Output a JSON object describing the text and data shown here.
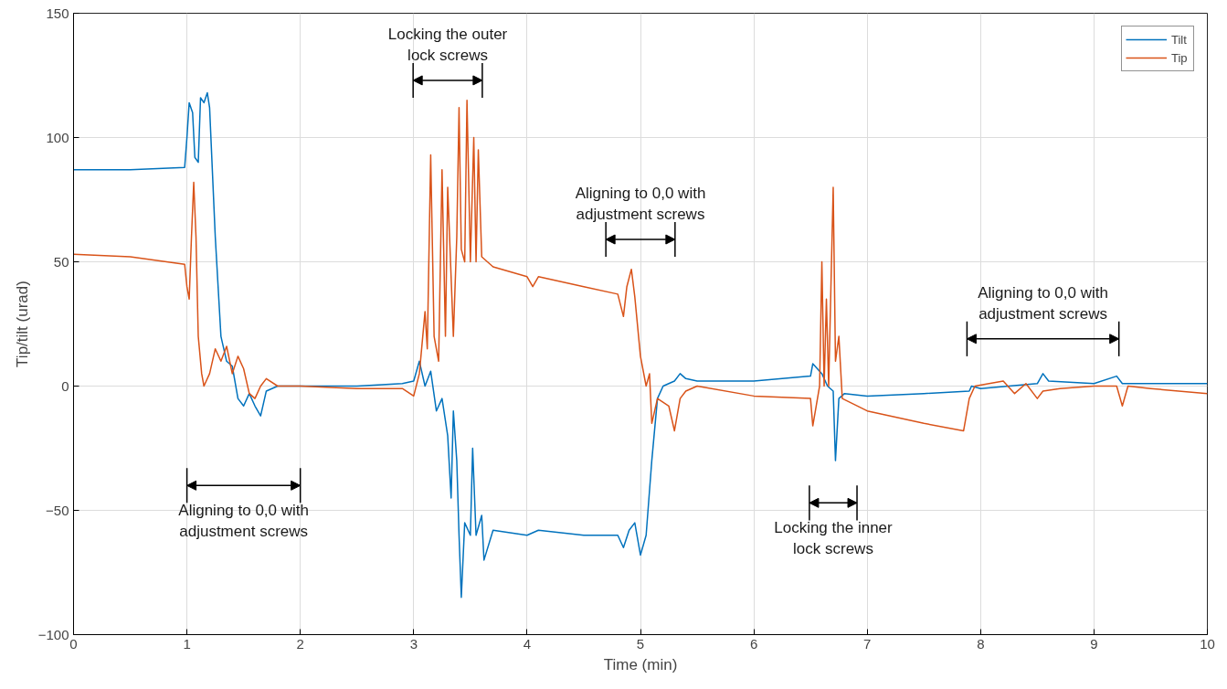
{
  "chart_data": {
    "type": "line",
    "xlabel": "Time (min)",
    "ylabel": "Tip/tilt (urad)",
    "xlim": [
      0,
      10
    ],
    "xticks": [
      0,
      1,
      2,
      3,
      4,
      5,
      6,
      7,
      8,
      9,
      10
    ],
    "ylim": [
      -100,
      150
    ],
    "yticks": [
      -100,
      -50,
      0,
      50,
      100,
      150
    ],
    "grid": true,
    "legend": "top right",
    "marker": "none",
    "line_style": "solid",
    "series": [
      {
        "name": "Tilt",
        "color": "#0072bd",
        "x": [
          0,
          0.5,
          0.98,
          1.0,
          1.02,
          1.05,
          1.07,
          1.1,
          1.12,
          1.15,
          1.18,
          1.2,
          1.25,
          1.3,
          1.35,
          1.4,
          1.45,
          1.5,
          1.55,
          1.6,
          1.65,
          1.7,
          1.8,
          2.0,
          2.5,
          2.9,
          3.0,
          3.05,
          3.1,
          3.15,
          3.2,
          3.25,
          3.3,
          3.33,
          3.35,
          3.38,
          3.4,
          3.42,
          3.45,
          3.5,
          3.52,
          3.55,
          3.6,
          3.62,
          3.7,
          4.0,
          4.1,
          4.5,
          4.8,
          4.85,
          4.9,
          4.95,
          5.0,
          5.05,
          5.1,
          5.15,
          5.2,
          5.3,
          5.35,
          5.4,
          5.5,
          6.0,
          6.5,
          6.52,
          6.6,
          6.65,
          6.7,
          6.72,
          6.75,
          6.8,
          7.0,
          7.5,
          7.9,
          7.92,
          8.0,
          8.5,
          8.55,
          8.6,
          9.0,
          9.2,
          9.25,
          9.5,
          10
        ],
        "values": [
          87,
          87,
          88,
          100,
          114,
          110,
          92,
          90,
          116,
          114,
          118,
          112,
          60,
          20,
          10,
          8,
          -5,
          -8,
          -3,
          -8,
          -12,
          -2,
          0,
          0,
          0,
          1,
          2,
          10,
          0,
          6,
          -10,
          -5,
          -20,
          -45,
          -10,
          -30,
          -60,
          -85,
          -55,
          -60,
          -25,
          -60,
          -52,
          -70,
          -58,
          -60,
          -58,
          -60,
          -60,
          -65,
          -58,
          -55,
          -68,
          -60,
          -30,
          -5,
          0,
          2,
          5,
          3,
          2,
          2,
          4,
          9,
          5,
          0,
          -2,
          -30,
          -5,
          -3,
          -4,
          -3,
          -2,
          0,
          -1,
          1,
          5,
          2,
          1,
          4,
          1,
          1,
          1
        ]
      },
      {
        "name": "Tip",
        "color": "#d95319",
        "x": [
          0,
          0.5,
          0.98,
          1.0,
          1.02,
          1.04,
          1.06,
          1.08,
          1.1,
          1.13,
          1.15,
          1.2,
          1.25,
          1.3,
          1.35,
          1.4,
          1.45,
          1.5,
          1.55,
          1.6,
          1.65,
          1.7,
          1.8,
          2.0,
          2.5,
          2.9,
          3.0,
          3.05,
          3.1,
          3.12,
          3.15,
          3.18,
          3.22,
          3.25,
          3.28,
          3.3,
          3.35,
          3.38,
          3.4,
          3.42,
          3.45,
          3.47,
          3.5,
          3.53,
          3.55,
          3.57,
          3.6,
          3.7,
          4.0,
          4.05,
          4.1,
          4.5,
          4.8,
          4.85,
          4.88,
          4.92,
          4.95,
          5.0,
          5.05,
          5.08,
          5.1,
          5.15,
          5.25,
          5.3,
          5.35,
          5.4,
          5.5,
          6.0,
          6.5,
          6.52,
          6.55,
          6.58,
          6.6,
          6.62,
          6.64,
          6.66,
          6.7,
          6.72,
          6.75,
          6.78,
          7.0,
          7.5,
          7.85,
          7.9,
          7.95,
          8.2,
          8.3,
          8.4,
          8.5,
          8.55,
          8.7,
          9.0,
          9.2,
          9.25,
          9.3,
          9.5,
          10
        ],
        "values": [
          53,
          52,
          49,
          40,
          35,
          60,
          82,
          60,
          20,
          5,
          0,
          5,
          15,
          10,
          16,
          5,
          12,
          7,
          -3,
          -5,
          0,
          3,
          0,
          0,
          -1,
          -1,
          -4,
          5,
          30,
          15,
          93,
          20,
          10,
          87,
          20,
          80,
          20,
          60,
          112,
          55,
          50,
          115,
          50,
          100,
          50,
          95,
          52,
          48,
          44,
          40,
          44,
          40,
          37,
          28,
          40,
          47,
          36,
          12,
          0,
          5,
          -15,
          -5,
          -8,
          -18,
          -5,
          -2,
          0,
          -4,
          -5,
          -16,
          -8,
          0,
          50,
          0,
          35,
          0,
          80,
          10,
          20,
          -5,
          -10,
          -15,
          -18,
          -5,
          0,
          2,
          -3,
          1,
          -5,
          -2,
          -1,
          0,
          0,
          -8,
          0,
          -1,
          -3
        ]
      }
    ],
    "annotations": [
      "Aligning to 0,0 with\nadjustment screws",
      "Locking the outer\nlock screws",
      "Aligning to 0,0 with\nadjustment screws",
      "Locking the inner\nlock screws",
      "Aligning to 0,0 with\nadjustment screws"
    ]
  }
}
